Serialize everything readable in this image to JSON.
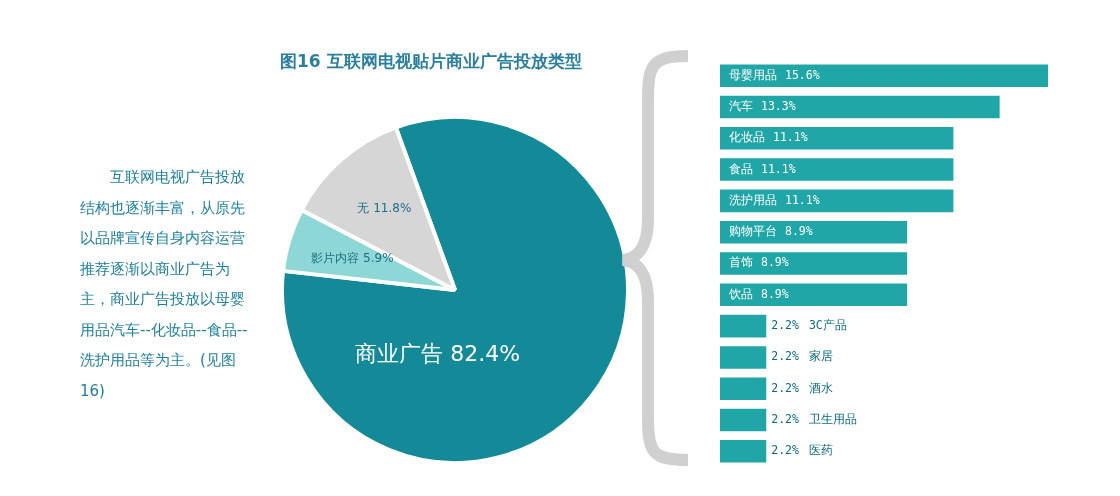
{
  "chart_data": [
    {
      "type": "pie",
      "title": "图16  互联网电视贴片商业广告投放类型",
      "categories": [
        "商业广告",
        "影片内容",
        "无"
      ],
      "values": [
        82.4,
        5.9,
        11.8
      ],
      "value_labels": [
        "82.4%",
        "5.9%",
        "11.8%"
      ],
      "colors": [
        "#148a98",
        "#8dd8d6",
        "#d6d6d6"
      ],
      "legend": false,
      "annotations": [
        "互联网电视广告投放结构也逐渐丰富，从原先以品牌宣传自身内容运营推荐逐渐以商业广告为主，商业广告投放以母婴用品汽车--化妆品--食品--洗护用品等为主。(见图16)"
      ]
    },
    {
      "type": "bar",
      "orientation": "horizontal",
      "categories": [
        "母婴用品",
        "汽车",
        "化妆品",
        "食品",
        "洗护用品",
        "购物平台",
        "首饰",
        "饮品",
        "3C产品",
        "家居",
        "酒水",
        "卫生用品",
        "医药"
      ],
      "values": [
        15.6,
        13.3,
        11.1,
        11.1,
        11.1,
        8.9,
        8.9,
        8.9,
        2.2,
        2.2,
        2.2,
        2.2,
        2.2
      ],
      "value_labels": [
        "15.6%",
        "13.3%",
        "11.1%",
        "11.1%",
        "11.1%",
        "8.9%",
        "8.9%",
        "8.9%",
        "2.2%",
        "2.2%",
        "2.2%",
        "2.2%",
        "2.2%"
      ],
      "color": "#20a6a6",
      "legend": false,
      "tick_labels": false
    }
  ]
}
